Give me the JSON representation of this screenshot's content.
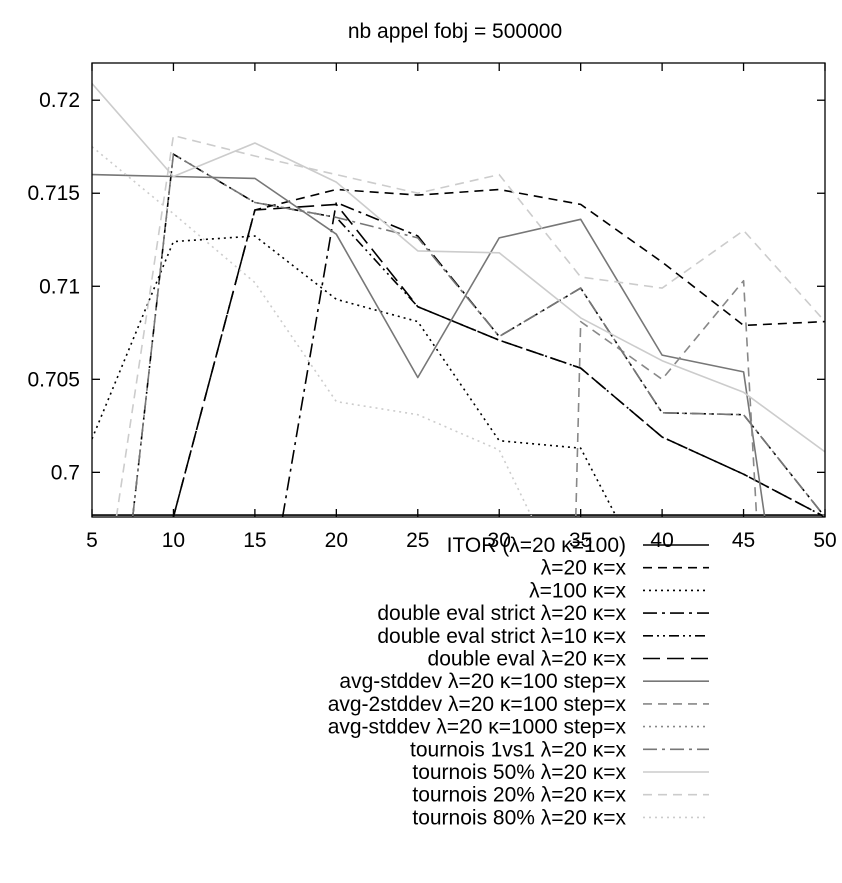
{
  "chart_data": {
    "type": "line",
    "title": "nb appel fobj = 500000",
    "xlabel": "",
    "ylabel": "",
    "xlim": [
      5,
      50
    ],
    "ylim": [
      0.6976,
      0.722
    ],
    "x_ticks": [
      5,
      10,
      15,
      20,
      25,
      30,
      35,
      40,
      45,
      50
    ],
    "y_ticks": [
      0.7,
      0.705,
      0.71,
      0.715,
      0.72
    ],
    "x_tick_labels": [
      "5",
      "10",
      "15",
      "20",
      "25",
      "30",
      "35",
      "40",
      "45",
      "50"
    ],
    "y_tick_labels": [
      "0.7",
      "0.705",
      "0.71",
      "0.715",
      "0.72"
    ],
    "grid": false,
    "legend_position": "bottom-center",
    "series": [
      {
        "name": "ITOR (λ=20 κ=100)",
        "color": "#000000",
        "dash": "solid",
        "points": [
          [
            5,
            0.6977
          ],
          [
            50,
            0.6977
          ]
        ]
      },
      {
        "name": "λ=20 κ=x",
        "color": "#000000",
        "dash": "dashed",
        "points": [
          [
            10,
            0.6976
          ],
          [
            15,
            0.7141
          ],
          [
            20,
            0.7152
          ],
          [
            25,
            0.7149
          ],
          [
            30,
            0.7152
          ],
          [
            35,
            0.7144
          ],
          [
            40,
            0.7113
          ],
          [
            45,
            0.7079
          ],
          [
            50,
            0.7081
          ]
        ]
      },
      {
        "name": "λ=100 κ=x",
        "color": "#000000",
        "dash": "dotted",
        "points": [
          [
            5,
            0.7018
          ],
          [
            10,
            0.7124
          ],
          [
            15,
            0.7127
          ],
          [
            20,
            0.7093
          ],
          [
            25,
            0.7081
          ],
          [
            30,
            0.7017
          ],
          [
            35,
            0.7013
          ],
          [
            37.2,
            0.6976
          ]
        ]
      },
      {
        "name": "double eval strict λ=20 κ=x",
        "color": "#000000",
        "dash": "dashdot",
        "points": [
          [
            16.7,
            0.6976
          ],
          [
            20,
            0.7145
          ],
          [
            25,
            0.7127
          ],
          [
            30,
            0.7073
          ],
          [
            35,
            0.7099
          ],
          [
            40,
            0.7032
          ],
          [
            45,
            0.7031
          ],
          [
            50,
            0.6976
          ]
        ]
      },
      {
        "name": "double eval strict λ=10 κ=x",
        "color": "#000000",
        "dash": "dashdotdot",
        "points": [
          [
            7.5,
            0.6976
          ],
          [
            10,
            0.7171
          ],
          [
            15,
            0.7145
          ],
          [
            20,
            0.7137
          ],
          [
            25,
            0.7089
          ],
          [
            30,
            0.7071
          ],
          [
            35,
            0.7056
          ],
          [
            40,
            0.7019
          ],
          [
            45,
            0.6999
          ],
          [
            50,
            0.6976
          ]
        ]
      },
      {
        "name": "double eval λ=20 κ=x",
        "color": "#000000",
        "dash": "longdash",
        "points": [
          [
            10,
            0.6976
          ],
          [
            15,
            0.7141
          ],
          [
            20,
            0.7144
          ],
          [
            25,
            0.7089
          ],
          [
            30,
            0.7071
          ],
          [
            35,
            0.7056
          ],
          [
            40,
            0.7019
          ],
          [
            45,
            0.6999
          ],
          [
            50,
            0.6976
          ]
        ]
      },
      {
        "name": "avg-stddev λ=20 κ=100 step=x",
        "color": "#777777",
        "dash": "solid",
        "points": [
          [
            5,
            0.716
          ],
          [
            10,
            0.7159
          ],
          [
            15,
            0.7158
          ],
          [
            20,
            0.7128
          ],
          [
            25,
            0.7051
          ],
          [
            30,
            0.7126
          ],
          [
            35,
            0.7136
          ],
          [
            40,
            0.7063
          ],
          [
            45,
            0.7054
          ],
          [
            46.3,
            0.6976
          ]
        ]
      },
      {
        "name": "avg-2stddev λ=20 κ=100 step=x",
        "color": "#888888",
        "dash": "dashed",
        "points": [
          [
            34.7,
            0.6976
          ],
          [
            35,
            0.7081
          ],
          [
            40,
            0.705
          ],
          [
            45,
            0.7103
          ],
          [
            45.8,
            0.6976
          ]
        ]
      },
      {
        "name": "avg-stddev λ=20 κ=1000 step=x",
        "color": "#888888",
        "dash": "dotted",
        "points": []
      },
      {
        "name": "tournois 1vs1 λ=20 κ=x",
        "color": "#777777",
        "dash": "dashdot",
        "points": [
          [
            7.5,
            0.6976
          ],
          [
            10,
            0.7171
          ],
          [
            15,
            0.7145
          ],
          [
            20,
            0.7137
          ],
          [
            25,
            0.7126
          ],
          [
            30,
            0.7073
          ],
          [
            35,
            0.7099
          ],
          [
            40,
            0.7032
          ],
          [
            45,
            0.7031
          ],
          [
            50,
            0.6976
          ]
        ]
      },
      {
        "name": "tournois 50% λ=20 κ=x",
        "color": "#cccccc",
        "dash": "solid",
        "points": [
          [
            5,
            0.7209
          ],
          [
            10,
            0.7159
          ],
          [
            15,
            0.7177
          ],
          [
            20,
            0.7156
          ],
          [
            25,
            0.7119
          ],
          [
            30,
            0.7118
          ],
          [
            35,
            0.7083
          ],
          [
            40,
            0.706
          ],
          [
            45,
            0.7043
          ],
          [
            50,
            0.7011
          ]
        ]
      },
      {
        "name": "tournois 20% λ=20 κ=x",
        "color": "#cccccc",
        "dash": "dashed",
        "points": [
          [
            6.5,
            0.6976
          ],
          [
            10,
            0.7181
          ],
          [
            15,
            0.717
          ],
          [
            20,
            0.716
          ],
          [
            25,
            0.715
          ],
          [
            30,
            0.716
          ],
          [
            35,
            0.7105
          ],
          [
            40,
            0.7099
          ],
          [
            45,
            0.713
          ],
          [
            50,
            0.7081
          ]
        ]
      },
      {
        "name": "tournois 80% λ=20 κ=x",
        "color": "#cccccc",
        "dash": "dotted",
        "points": [
          [
            5,
            0.7175
          ],
          [
            10,
            0.7139
          ],
          [
            15,
            0.7102
          ],
          [
            20,
            0.7038
          ],
          [
            25,
            0.7031
          ],
          [
            30,
            0.7012
          ],
          [
            32,
            0.6976
          ]
        ]
      }
    ]
  }
}
